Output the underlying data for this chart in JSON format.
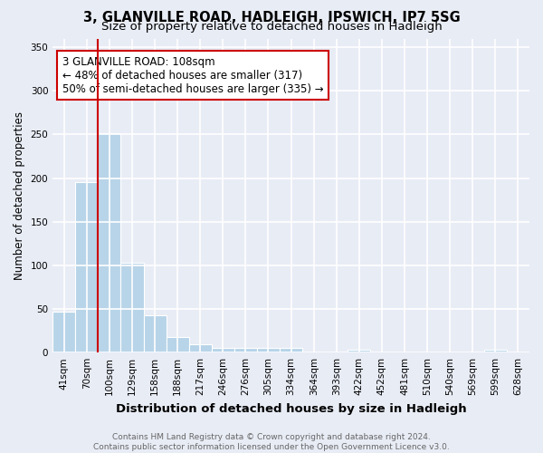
{
  "title": "3, GLANVILLE ROAD, HADLEIGH, IPSWICH, IP7 5SG",
  "subtitle": "Size of property relative to detached houses in Hadleigh",
  "xlabel": "Distribution of detached houses by size in Hadleigh",
  "ylabel": "Number of detached properties",
  "categories": [
    "41sqm",
    "70sqm",
    "100sqm",
    "129sqm",
    "158sqm",
    "188sqm",
    "217sqm",
    "246sqm",
    "276sqm",
    "305sqm",
    "334sqm",
    "364sqm",
    "393sqm",
    "422sqm",
    "452sqm",
    "481sqm",
    "510sqm",
    "540sqm",
    "569sqm",
    "599sqm",
    "628sqm"
  ],
  "values": [
    47,
    195,
    252,
    103,
    43,
    18,
    10,
    5,
    5,
    5,
    5,
    0,
    0,
    3,
    0,
    0,
    0,
    0,
    0,
    3,
    0
  ],
  "bar_color": "#b8d4e8",
  "bar_edge_color": "white",
  "vline_x_index": 2,
  "vline_color": "#cc0000",
  "annotation_line1": "3 GLANVILLE ROAD: 108sqm",
  "annotation_line2": "← 48% of detached houses are smaller (317)",
  "annotation_line3": "50% of semi-detached houses are larger (335) →",
  "annotation_box_color": "#cc0000",
  "annotation_box_facecolor": "white",
  "ylim": [
    0,
    360
  ],
  "yticks": [
    0,
    50,
    100,
    150,
    200,
    250,
    300,
    350
  ],
  "footnote": "Contains HM Land Registry data © Crown copyright and database right 2024.\nContains public sector information licensed under the Open Government Licence v3.0.",
  "bg_color": "#e8ecf5",
  "plot_bg_color": "#e8ecf5",
  "grid_color": "white",
  "title_fontsize": 10.5,
  "subtitle_fontsize": 9.5,
  "xlabel_fontsize": 9.5,
  "ylabel_fontsize": 8.5,
  "tick_fontsize": 7.5,
  "annotation_fontsize": 8.5,
  "footnote_fontsize": 6.5
}
